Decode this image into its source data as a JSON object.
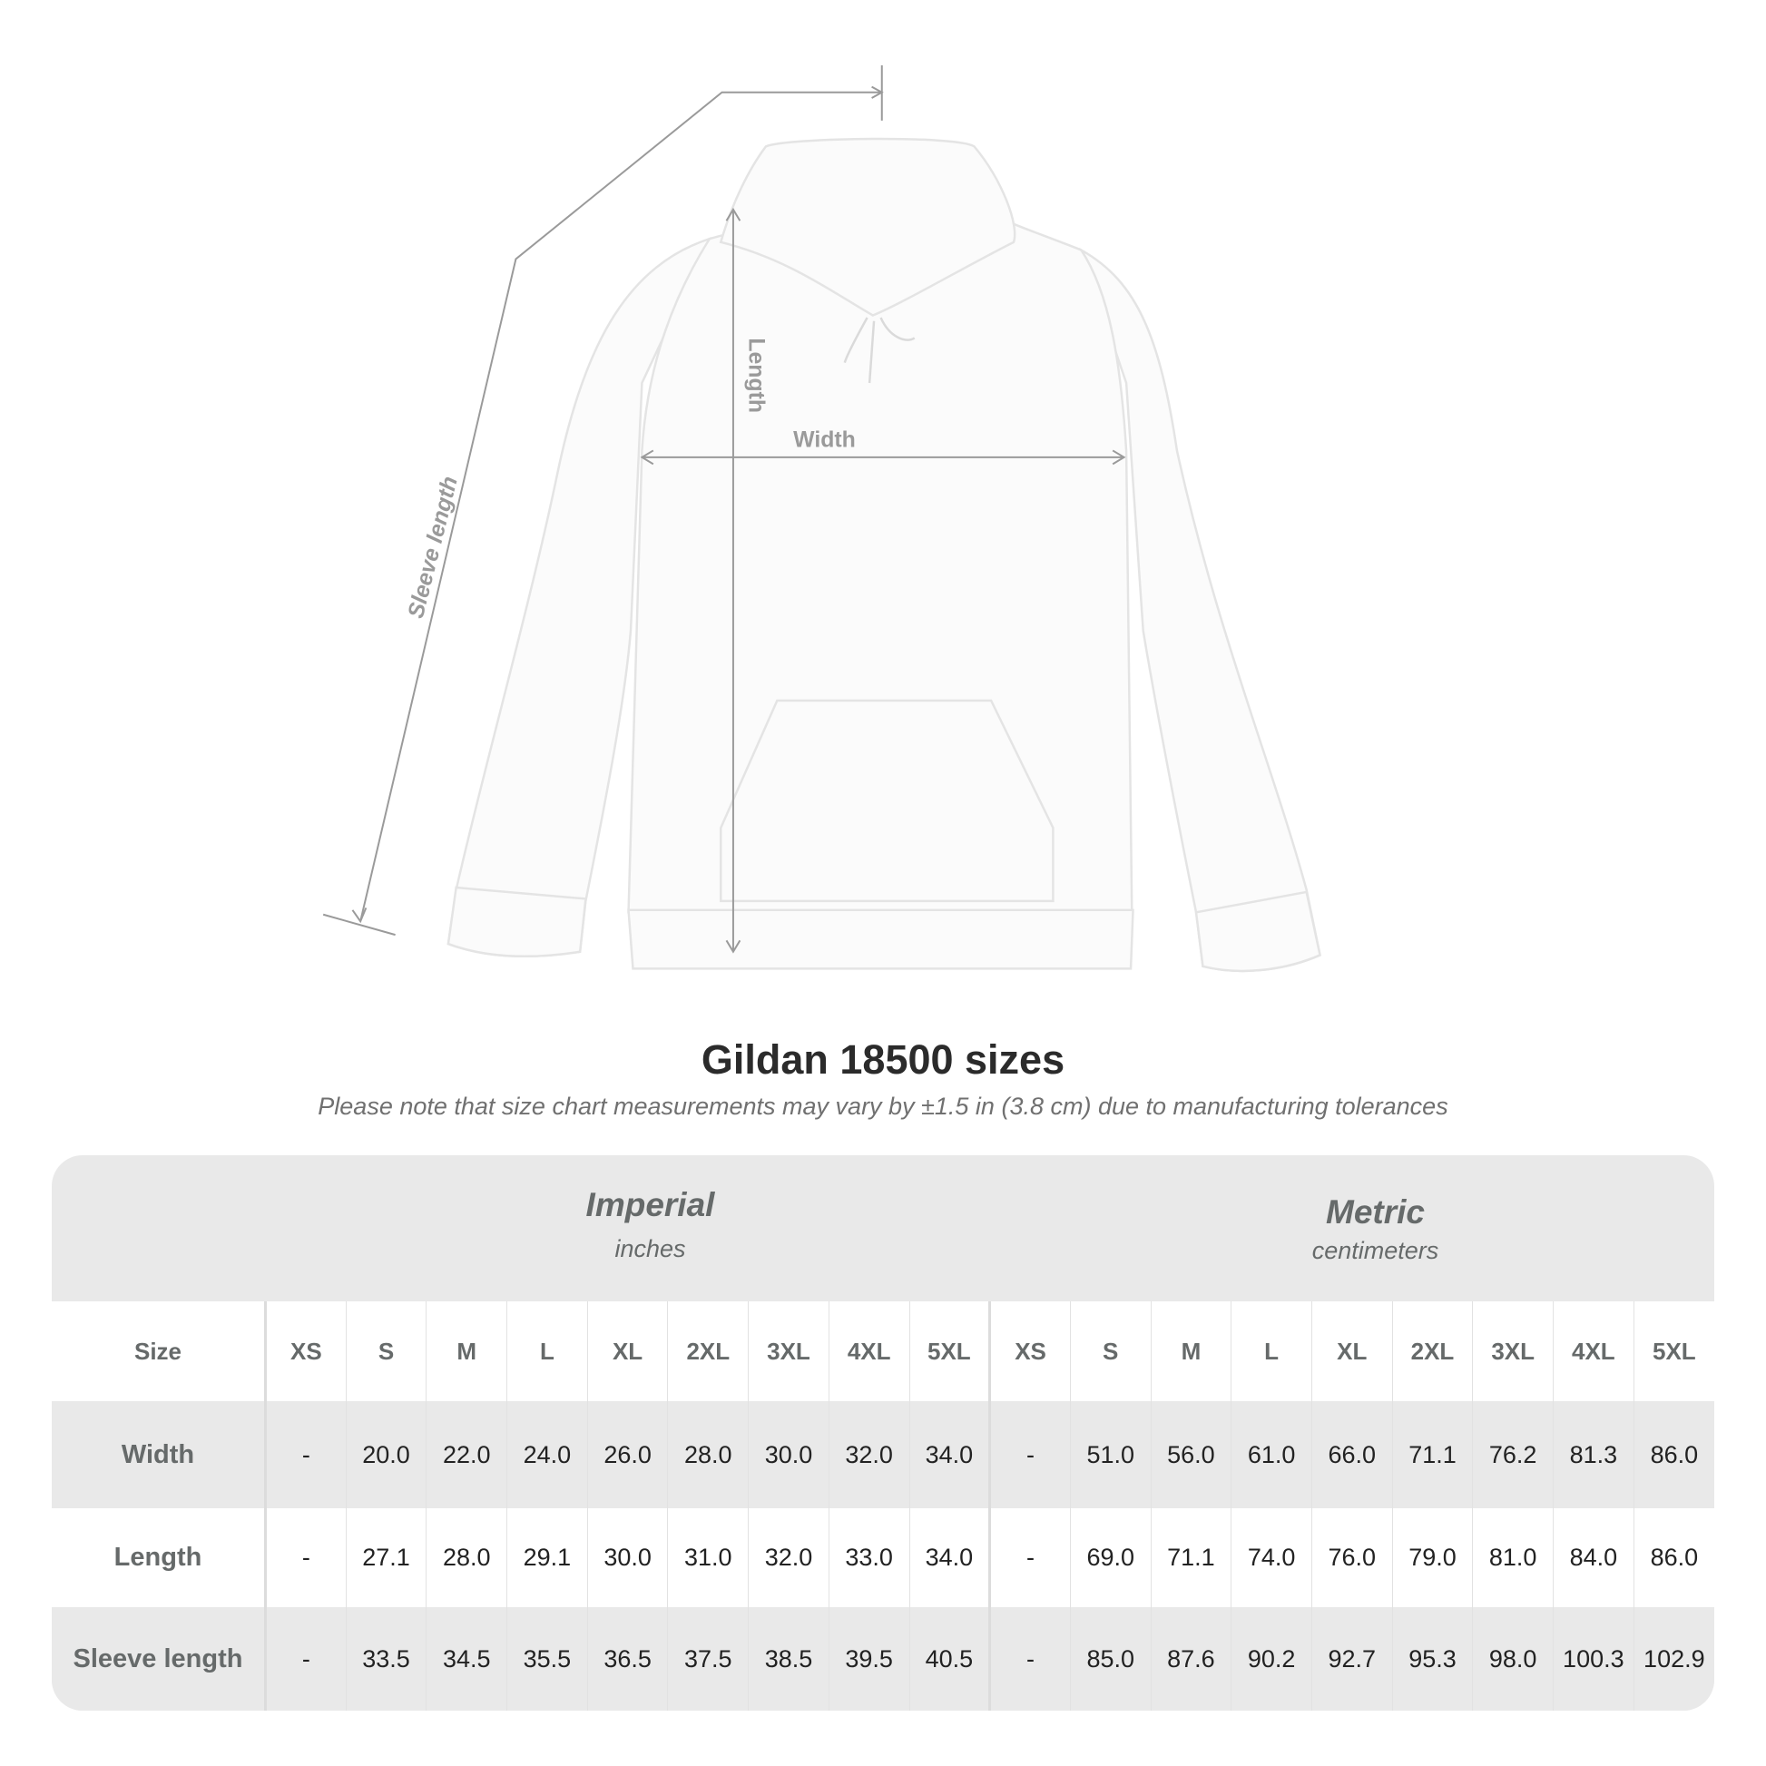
{
  "diagram": {
    "labels": {
      "length": "Length",
      "width": "Width",
      "sleeve_length": "Sleeve length"
    }
  },
  "header": {
    "title": "Gildan 18500 sizes",
    "subtitle": "Please note that size chart measurements may vary by ±1.5 in (3.8 cm) due to manufacturing tolerances"
  },
  "table": {
    "imperial": {
      "name": "Imperial",
      "unit": "inches"
    },
    "metric": {
      "name": "Metric",
      "unit": "centimeters"
    },
    "size_label": "Size",
    "sizes": [
      "XS",
      "S",
      "M",
      "L",
      "XL",
      "2XL",
      "3XL",
      "4XL",
      "5XL"
    ],
    "rows": [
      {
        "label": "Width",
        "imperial": [
          "-",
          "20.0",
          "22.0",
          "24.0",
          "26.0",
          "28.0",
          "30.0",
          "32.0",
          "34.0"
        ],
        "metric": [
          "-",
          "51.0",
          "56.0",
          "61.0",
          "66.0",
          "71.1",
          "76.2",
          "81.3",
          "86.0"
        ]
      },
      {
        "label": "Length",
        "imperial": [
          "-",
          "27.1",
          "28.0",
          "29.1",
          "30.0",
          "31.0",
          "32.0",
          "33.0",
          "34.0"
        ],
        "metric": [
          "-",
          "69.0",
          "71.1",
          "74.0",
          "76.0",
          "79.0",
          "81.0",
          "84.0",
          "86.0"
        ]
      },
      {
        "label": "Sleeve length",
        "imperial": [
          "-",
          "33.5",
          "34.5",
          "35.5",
          "36.5",
          "37.5",
          "38.5",
          "39.5",
          "40.5"
        ],
        "metric": [
          "-",
          "85.0",
          "87.6",
          "90.2",
          "92.7",
          "95.3",
          "98.0",
          "100.3",
          "102.9"
        ]
      }
    ]
  }
}
